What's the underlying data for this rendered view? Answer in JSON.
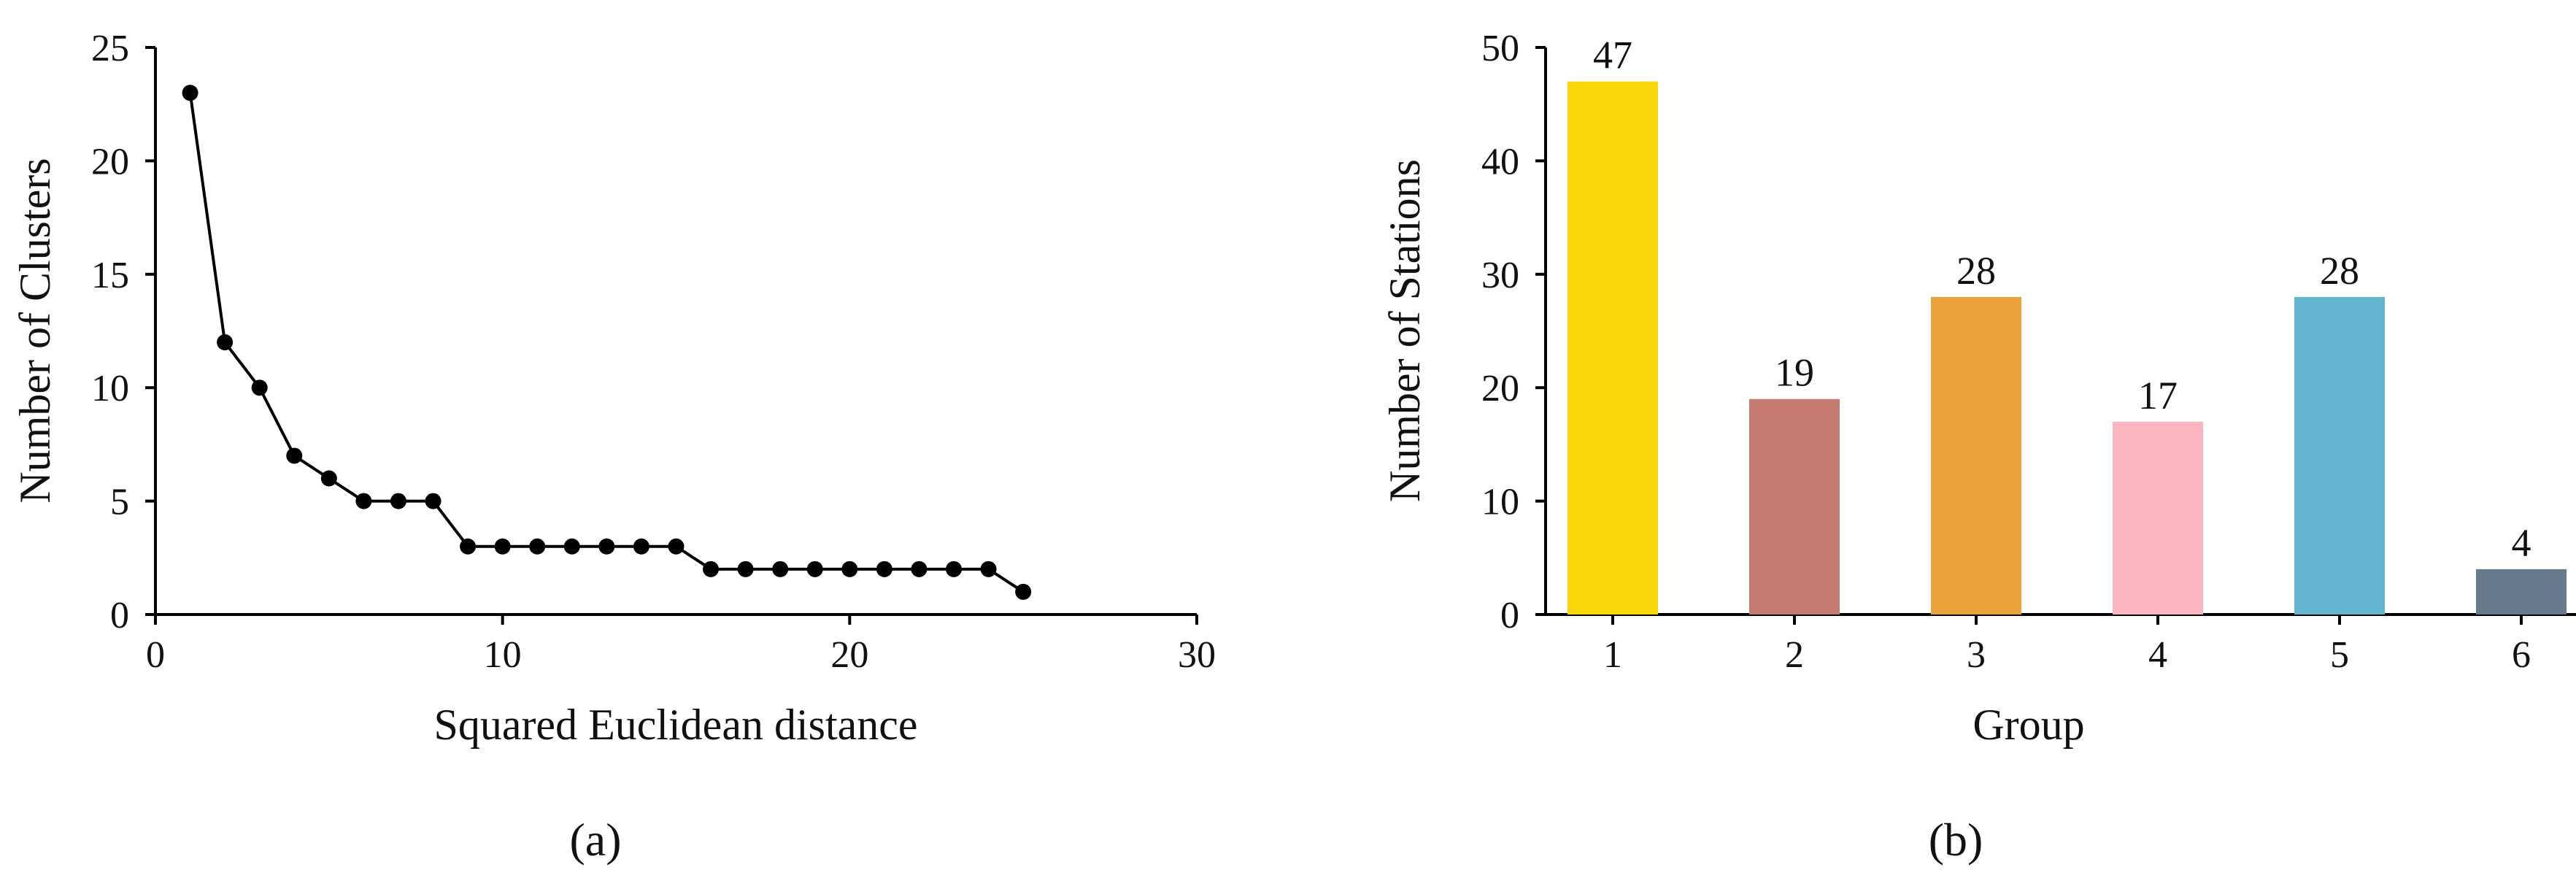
{
  "chart_data": [
    {
      "type": "line",
      "panel_label": "(a)",
      "xlabel": "Squared Euclidean distance",
      "ylabel": "Number of Clusters",
      "xlim": [
        0,
        30
      ],
      "ylim": [
        0,
        25
      ],
      "xticks": [
        0,
        10,
        20,
        30
      ],
      "yticks": [
        0,
        5,
        10,
        15,
        20,
        25
      ],
      "grid": false,
      "series": [
        {
          "color": "#000000",
          "marker": "circle",
          "x": [
            1,
            2,
            3,
            4,
            5,
            6,
            7,
            8,
            9,
            10,
            11,
            12,
            13,
            14,
            15,
            16,
            17,
            18,
            19,
            20,
            21,
            22,
            23,
            24,
            25
          ],
          "y": [
            23,
            12,
            10,
            7,
            6,
            5,
            5,
            5,
            3,
            3,
            3,
            3,
            3,
            3,
            3,
            2,
            2,
            2,
            2,
            2,
            2,
            2,
            2,
            2,
            1
          ]
        }
      ]
    },
    {
      "type": "bar",
      "panel_label": "(b)",
      "xlabel": "Group",
      "ylabel": "Number of Stations",
      "ylim": [
        0,
        50
      ],
      "yticks": [
        0,
        10,
        20,
        30,
        40,
        50
      ],
      "grid": false,
      "categories": [
        "1",
        "2",
        "3",
        "4",
        "5",
        "6"
      ],
      "values": [
        47,
        19,
        28,
        17,
        28,
        4
      ],
      "colors": [
        "#F8D808",
        "#C57B72",
        "#E9A23C",
        "#FDB6C0",
        "#62B4CF",
        "#687B8C"
      ]
    }
  ]
}
